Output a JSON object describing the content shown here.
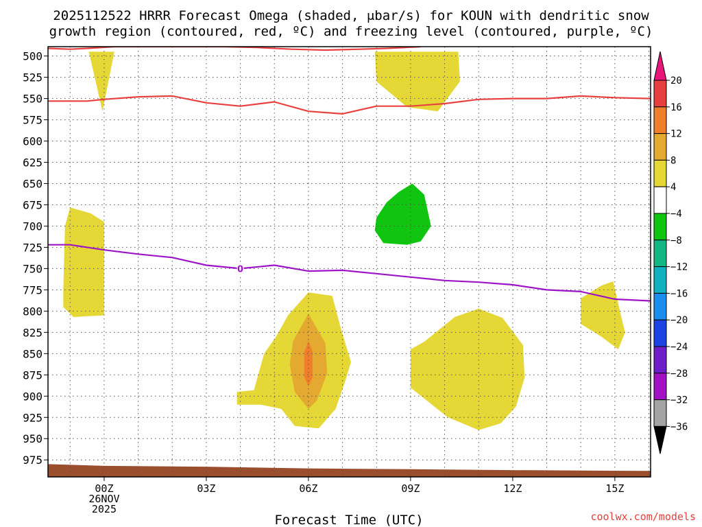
{
  "chart_data": {
    "type": "contour",
    "title_lines": [
      "2025112522 HRRR Forecast Omega (shaded, μbar/s) for KOUN with dendritic snow",
      "growth region (contoured, red, ºC) and freezing level (contoured, purple, ºC)"
    ],
    "xlabel": "Forecast Time (UTC)",
    "ylabel": "",
    "credit": "coolwx.com/models",
    "x_range": [
      -1.65,
      16.05
    ],
    "y_range": [
      489,
      995
    ],
    "x_ticks": [
      {
        "t": 0,
        "lines": [
          "00Z",
          "26NOV",
          "2025"
        ]
      },
      {
        "t": 3,
        "lines": [
          "03Z"
        ]
      },
      {
        "t": 6,
        "lines": [
          "06Z"
        ]
      },
      {
        "t": 9,
        "lines": [
          "09Z"
        ]
      },
      {
        "t": 12,
        "lines": [
          "12Z"
        ]
      },
      {
        "t": 15,
        "lines": [
          "15Z"
        ]
      }
    ],
    "y_ticks": [
      500,
      525,
      550,
      575,
      600,
      625,
      650,
      675,
      700,
      725,
      750,
      775,
      800,
      825,
      850,
      875,
      900,
      925,
      950,
      975
    ],
    "grid": true,
    "colorbar": {
      "labels": [
        "20",
        "16",
        "12",
        "8",
        "4",
        "-4",
        "-8",
        "-12",
        "-16",
        "-20",
        "-24",
        "-28",
        "-32",
        "-36"
      ],
      "colors": [
        "#e8403e",
        "#f07f2c",
        "#e3a930",
        "#e4d736",
        "#ffffff",
        "#0fc50f",
        "#12b783",
        "#11b3c2",
        "#1a8ff0",
        "#1d43e3",
        "#6e1ec9",
        "#a112c3",
        "#a4a4a4"
      ],
      "top_color": "#e8157a",
      "bottom_color": "#000000"
    },
    "omega_regions": [
      {
        "level": 4,
        "color": "#e4d736",
        "points": [
          [
            -1.05,
            495
          ],
          [
            -0.45,
            495
          ],
          [
            -0.05,
            565
          ],
          [
            0.3,
            495
          ]
        ]
      },
      {
        "level": 4,
        "color": "#e4d736",
        "points": [
          [
            7.95,
            495
          ],
          [
            10.4,
            495
          ],
          [
            10.45,
            530
          ],
          [
            9.8,
            565
          ],
          [
            8.9,
            560
          ],
          [
            8.0,
            530
          ]
        ]
      },
      {
        "level": 4,
        "color": "#e4d736",
        "points": [
          [
            -1.2,
            775
          ],
          [
            -1.15,
            700
          ],
          [
            -1.0,
            678
          ],
          [
            -0.4,
            685
          ],
          [
            0.0,
            695
          ],
          [
            0.0,
            805
          ],
          [
            -0.9,
            807
          ],
          [
            -1.2,
            795
          ]
        ]
      },
      {
        "level": 4,
        "color": "#e4d736",
        "points": [
          [
            3.9,
            895
          ],
          [
            4.4,
            893
          ],
          [
            4.7,
            850
          ],
          [
            5.05,
            830
          ],
          [
            5.4,
            805
          ],
          [
            6.0,
            778
          ],
          [
            6.7,
            782
          ],
          [
            6.95,
            820
          ],
          [
            7.25,
            860
          ],
          [
            7.1,
            880
          ],
          [
            6.8,
            915
          ],
          [
            6.3,
            938
          ],
          [
            5.6,
            935
          ],
          [
            5.2,
            915
          ],
          [
            4.6,
            910
          ],
          [
            3.9,
            910
          ]
        ]
      },
      {
        "level": 4,
        "color": "#e4d736",
        "points": [
          [
            9.0,
            845
          ],
          [
            9.4,
            836
          ],
          [
            10.3,
            807
          ],
          [
            11.0,
            797
          ],
          [
            11.7,
            808
          ],
          [
            12.3,
            840
          ],
          [
            12.35,
            878
          ],
          [
            12.1,
            912
          ],
          [
            11.65,
            932
          ],
          [
            11.0,
            940
          ],
          [
            10.1,
            925
          ],
          [
            9.0,
            890
          ]
        ]
      },
      {
        "level": 4,
        "color": "#e4d736",
        "points": [
          [
            14.0,
            785
          ],
          [
            14.6,
            770
          ],
          [
            14.95,
            765
          ],
          [
            15.15,
            800
          ],
          [
            15.3,
            825
          ],
          [
            15.1,
            845
          ],
          [
            14.6,
            830
          ],
          [
            14.0,
            815
          ]
        ]
      },
      {
        "level": 8,
        "color": "#e3a930",
        "points": [
          [
            6.0,
            803
          ],
          [
            6.5,
            838
          ],
          [
            6.55,
            873
          ],
          [
            6.25,
            905
          ],
          [
            6.0,
            915
          ],
          [
            5.6,
            895
          ],
          [
            5.45,
            863
          ],
          [
            5.55,
            835
          ]
        ]
      },
      {
        "level": 16,
        "color": "#f07f2c",
        "points": [
          [
            6.0,
            835
          ],
          [
            6.12,
            848
          ],
          [
            6.12,
            878
          ],
          [
            6.0,
            888
          ],
          [
            5.88,
            878
          ],
          [
            5.88,
            848
          ]
        ]
      },
      {
        "level": -4,
        "color": "#0fc50f",
        "points": [
          [
            8.0,
            690
          ],
          [
            8.3,
            672
          ],
          [
            8.65,
            660
          ],
          [
            9.05,
            650
          ],
          [
            9.4,
            663
          ],
          [
            9.6,
            700
          ],
          [
            9.3,
            718
          ],
          [
            8.9,
            722
          ],
          [
            8.2,
            720
          ],
          [
            7.95,
            705
          ]
        ]
      }
    ],
    "dendritic_contours": [
      {
        "color": "#e8403e",
        "points": [
          [
            -1.65,
            491
          ],
          [
            -1.0,
            492
          ],
          [
            -0.5,
            491
          ],
          [
            0.3,
            489
          ],
          [
            3.5,
            489
          ],
          [
            4.5,
            490
          ],
          [
            5.5,
            492
          ],
          [
            6.5,
            493
          ],
          [
            7.5,
            492
          ],
          [
            8.3,
            491
          ],
          [
            9.3,
            489
          ]
        ]
      },
      {
        "color": "#e8403e",
        "points": [
          [
            -1.65,
            553
          ],
          [
            -0.5,
            553
          ],
          [
            0.0,
            551
          ],
          [
            1.0,
            548
          ],
          [
            2.0,
            547
          ],
          [
            3.0,
            555
          ],
          [
            4.0,
            559
          ],
          [
            5.0,
            554
          ],
          [
            6.0,
            565
          ],
          [
            7.0,
            568
          ],
          [
            8.0,
            559
          ],
          [
            9.0,
            559
          ],
          [
            10.0,
            556
          ],
          [
            11.0,
            551
          ],
          [
            12.0,
            550
          ],
          [
            13.0,
            550
          ],
          [
            14.0,
            547
          ],
          [
            15.0,
            549
          ],
          [
            16.05,
            550
          ]
        ]
      }
    ],
    "freezing_contour": {
      "color": "#9c14c6",
      "label": "0",
      "label_at": [
        4.0,
        750
      ],
      "points": [
        [
          -1.65,
          722
        ],
        [
          -1.0,
          722
        ],
        [
          0.0,
          728
        ],
        [
          1.0,
          733
        ],
        [
          2.0,
          737
        ],
        [
          3.0,
          746
        ],
        [
          4.0,
          750
        ],
        [
          5.0,
          746
        ],
        [
          6.0,
          753
        ],
        [
          7.0,
          752
        ],
        [
          8.0,
          756
        ],
        [
          9.0,
          760
        ],
        [
          10.0,
          764
        ],
        [
          11.0,
          766
        ],
        [
          12.0,
          769
        ],
        [
          13.0,
          775
        ],
        [
          14.0,
          777
        ],
        [
          15.0,
          786
        ],
        [
          16.05,
          788
        ]
      ]
    },
    "terrain": {
      "color": "#9a4e2e",
      "top": [
        [
          -1.65,
          980
        ],
        [
          0.0,
          982
        ],
        [
          3.0,
          983
        ],
        [
          6.0,
          985
        ],
        [
          9.0,
          986
        ],
        [
          12.0,
          987
        ],
        [
          16.05,
          988
        ]
      ]
    }
  }
}
